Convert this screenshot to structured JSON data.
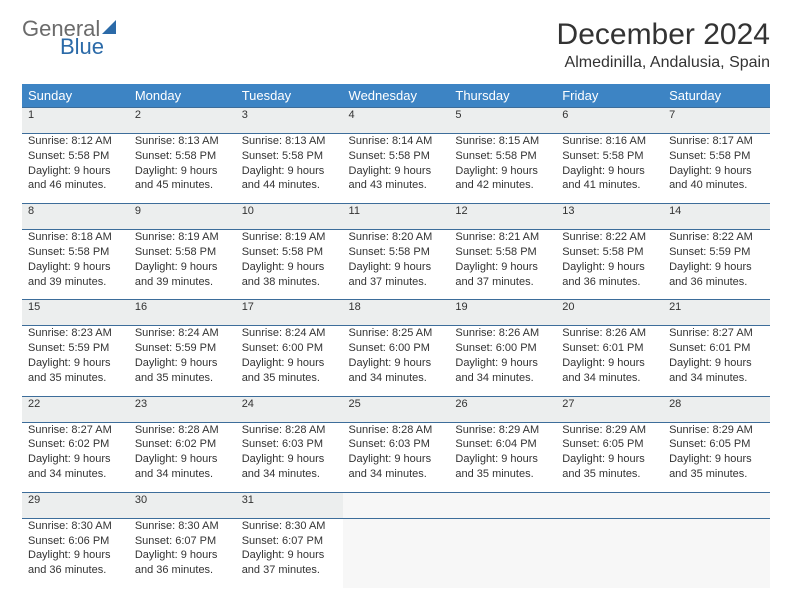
{
  "brand": {
    "part1": "General",
    "part2": "Blue"
  },
  "title": "December 2024",
  "location": "Almedinilla, Andalusia, Spain",
  "colors": {
    "header_bg": "#3d84c4",
    "header_text": "#ffffff",
    "rule": "#3d6d9a",
    "daynum_bg": "#eceeee",
    "text": "#333333",
    "brand_gray": "#6b6b6b",
    "brand_blue": "#2b6aa8",
    "page_bg": "#ffffff"
  },
  "typography": {
    "body_fontsize": 12,
    "cell_fontsize": 11,
    "title_fontsize": 30,
    "location_fontsize": 16,
    "header_fontsize": 13
  },
  "weekdays": [
    "Sunday",
    "Monday",
    "Tuesday",
    "Wednesday",
    "Thursday",
    "Friday",
    "Saturday"
  ],
  "weeks": [
    {
      "days": [
        {
          "n": "1",
          "sunrise": "8:12 AM",
          "sunset": "5:58 PM",
          "day_h": "9",
          "day_m": "46"
        },
        {
          "n": "2",
          "sunrise": "8:13 AM",
          "sunset": "5:58 PM",
          "day_h": "9",
          "day_m": "45"
        },
        {
          "n": "3",
          "sunrise": "8:13 AM",
          "sunset": "5:58 PM",
          "day_h": "9",
          "day_m": "44"
        },
        {
          "n": "4",
          "sunrise": "8:14 AM",
          "sunset": "5:58 PM",
          "day_h": "9",
          "day_m": "43"
        },
        {
          "n": "5",
          "sunrise": "8:15 AM",
          "sunset": "5:58 PM",
          "day_h": "9",
          "day_m": "42"
        },
        {
          "n": "6",
          "sunrise": "8:16 AM",
          "sunset": "5:58 PM",
          "day_h": "9",
          "day_m": "41"
        },
        {
          "n": "7",
          "sunrise": "8:17 AM",
          "sunset": "5:58 PM",
          "day_h": "9",
          "day_m": "40"
        }
      ]
    },
    {
      "days": [
        {
          "n": "8",
          "sunrise": "8:18 AM",
          "sunset": "5:58 PM",
          "day_h": "9",
          "day_m": "39"
        },
        {
          "n": "9",
          "sunrise": "8:19 AM",
          "sunset": "5:58 PM",
          "day_h": "9",
          "day_m": "39"
        },
        {
          "n": "10",
          "sunrise": "8:19 AM",
          "sunset": "5:58 PM",
          "day_h": "9",
          "day_m": "38"
        },
        {
          "n": "11",
          "sunrise": "8:20 AM",
          "sunset": "5:58 PM",
          "day_h": "9",
          "day_m": "37"
        },
        {
          "n": "12",
          "sunrise": "8:21 AM",
          "sunset": "5:58 PM",
          "day_h": "9",
          "day_m": "37"
        },
        {
          "n": "13",
          "sunrise": "8:22 AM",
          "sunset": "5:58 PM",
          "day_h": "9",
          "day_m": "36"
        },
        {
          "n": "14",
          "sunrise": "8:22 AM",
          "sunset": "5:59 PM",
          "day_h": "9",
          "day_m": "36"
        }
      ]
    },
    {
      "days": [
        {
          "n": "15",
          "sunrise": "8:23 AM",
          "sunset": "5:59 PM",
          "day_h": "9",
          "day_m": "35"
        },
        {
          "n": "16",
          "sunrise": "8:24 AM",
          "sunset": "5:59 PM",
          "day_h": "9",
          "day_m": "35"
        },
        {
          "n": "17",
          "sunrise": "8:24 AM",
          "sunset": "6:00 PM",
          "day_h": "9",
          "day_m": "35"
        },
        {
          "n": "18",
          "sunrise": "8:25 AM",
          "sunset": "6:00 PM",
          "day_h": "9",
          "day_m": "34"
        },
        {
          "n": "19",
          "sunrise": "8:26 AM",
          "sunset": "6:00 PM",
          "day_h": "9",
          "day_m": "34"
        },
        {
          "n": "20",
          "sunrise": "8:26 AM",
          "sunset": "6:01 PM",
          "day_h": "9",
          "day_m": "34"
        },
        {
          "n": "21",
          "sunrise": "8:27 AM",
          "sunset": "6:01 PM",
          "day_h": "9",
          "day_m": "34"
        }
      ]
    },
    {
      "days": [
        {
          "n": "22",
          "sunrise": "8:27 AM",
          "sunset": "6:02 PM",
          "day_h": "9",
          "day_m": "34"
        },
        {
          "n": "23",
          "sunrise": "8:28 AM",
          "sunset": "6:02 PM",
          "day_h": "9",
          "day_m": "34"
        },
        {
          "n": "24",
          "sunrise": "8:28 AM",
          "sunset": "6:03 PM",
          "day_h": "9",
          "day_m": "34"
        },
        {
          "n": "25",
          "sunrise": "8:28 AM",
          "sunset": "6:03 PM",
          "day_h": "9",
          "day_m": "34"
        },
        {
          "n": "26",
          "sunrise": "8:29 AM",
          "sunset": "6:04 PM",
          "day_h": "9",
          "day_m": "35"
        },
        {
          "n": "27",
          "sunrise": "8:29 AM",
          "sunset": "6:05 PM",
          "day_h": "9",
          "day_m": "35"
        },
        {
          "n": "28",
          "sunrise": "8:29 AM",
          "sunset": "6:05 PM",
          "day_h": "9",
          "day_m": "35"
        }
      ]
    },
    {
      "days": [
        {
          "n": "29",
          "sunrise": "8:30 AM",
          "sunset": "6:06 PM",
          "day_h": "9",
          "day_m": "36"
        },
        {
          "n": "30",
          "sunrise": "8:30 AM",
          "sunset": "6:07 PM",
          "day_h": "9",
          "day_m": "36"
        },
        {
          "n": "31",
          "sunrise": "8:30 AM",
          "sunset": "6:07 PM",
          "day_h": "9",
          "day_m": "37"
        },
        null,
        null,
        null,
        null
      ]
    }
  ]
}
